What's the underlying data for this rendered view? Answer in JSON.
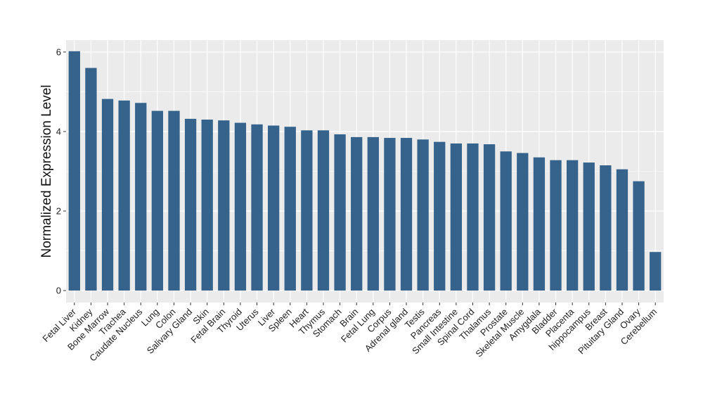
{
  "chart_data": {
    "type": "bar",
    "title": "",
    "xlabel": "",
    "ylabel": "Normalized Expression Level",
    "ylim": [
      -0.3,
      6.3
    ],
    "yticks": [
      0,
      2,
      4,
      6
    ],
    "grid": true,
    "legend": "none",
    "bar_color": "#35638c",
    "panel_color": "#ebebeb",
    "categories": [
      "Fetal Liver",
      "Kidney",
      "Bone Marrow",
      "Trachea",
      "Caudate Nucleus",
      "Lung",
      "Colon",
      "Salivary Gland",
      "Skin",
      "Fetal Brain",
      "Thyroid",
      "Uterus",
      "Liver",
      "Spleen",
      "Heart",
      "Thymus",
      "Stomach",
      "Brain",
      "Fetal Lung",
      "Corpus",
      "Adrenal gland",
      "Testis",
      "Pancreas",
      "Small Intestine",
      "Spinal Cord",
      "Thalamus",
      "Prostate",
      "Skeletal Muscle",
      "Amygdala",
      "Bladder",
      "Placenta",
      "hippocampus",
      "Breast",
      "Pituitary Gland",
      "Ovary",
      "Cerebellum"
    ],
    "values": [
      6.02,
      5.6,
      4.82,
      4.78,
      4.72,
      4.52,
      4.52,
      4.32,
      4.3,
      4.28,
      4.22,
      4.18,
      4.15,
      4.12,
      4.03,
      4.03,
      3.93,
      3.86,
      3.86,
      3.84,
      3.84,
      3.8,
      3.74,
      3.7,
      3.7,
      3.68,
      3.5,
      3.46,
      3.35,
      3.28,
      3.28,
      3.22,
      3.15,
      3.05,
      2.75,
      0.97
    ]
  }
}
